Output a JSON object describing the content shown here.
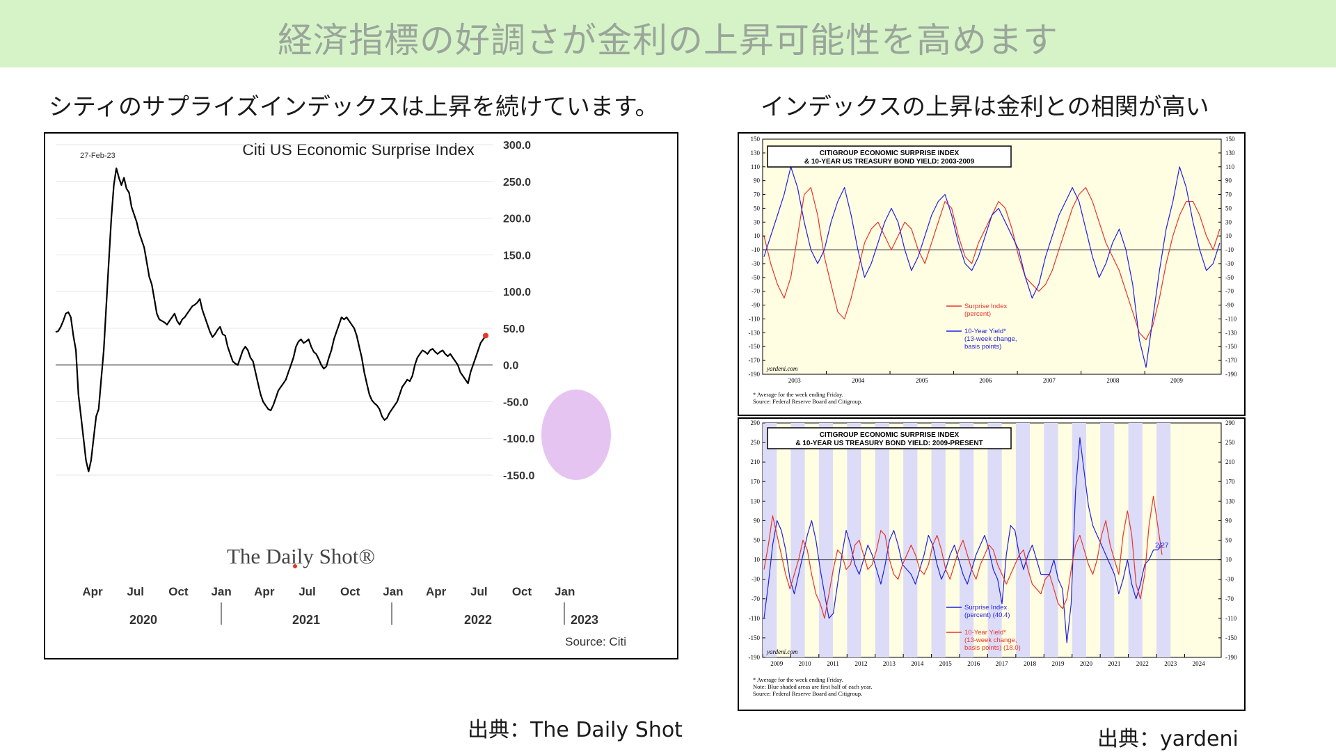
{
  "banner": {
    "title": "経済指標の好調さが金利の上昇可能性を高めます"
  },
  "left_panel": {
    "subtitle": "シティのサプライズインデックスは上昇を続けています。",
    "credit": "出典：The Daily Shot"
  },
  "right_panel": {
    "subtitle": "インデックスの上昇は金利との相関が高い",
    "credit": "出典：yardeni"
  },
  "colors": {
    "banner_bg": "#d6f3c8",
    "chart_bg": "#fffde2",
    "shade": "#dcdcf8",
    "red": "#e8342a",
    "blue": "#1f1fe6",
    "highlight": "#e6c4f2"
  },
  "chart_data": [
    {
      "type": "line",
      "title": "Citi US Economic Surprise Index",
      "date_label": "27-Feb-23",
      "source": "Source: Citi",
      "watermark": "The Daily Shot®",
      "ylim": [
        -150,
        300
      ],
      "y_ticks": [
        "300.0",
        "250.0",
        "200.0",
        "150.0",
        "100.0",
        "50.0",
        "0.0",
        "-50.0",
        "-100.0",
        "-150.0"
      ],
      "month_labels": [
        "Apr",
        "Jul",
        "Oct",
        "Jan",
        "Apr",
        "Jul",
        "Oct",
        "Jan",
        "Apr",
        "Jul",
        "Oct",
        "Jan"
      ],
      "year_labels": [
        "2020",
        "2021",
        "2022",
        "2023"
      ],
      "series": [
        {
          "values": [
            45,
            46,
            52,
            60,
            70,
            72,
            65,
            40,
            20,
            -40,
            -70,
            -100,
            -130,
            -145,
            -130,
            -100,
            -70,
            -60,
            -20,
            20,
            80,
            140,
            200,
            245,
            268,
            255,
            245,
            255,
            240,
            235,
            215,
            205,
            195,
            180,
            170,
            160,
            140,
            120,
            110,
            90,
            70,
            62,
            60,
            58,
            55,
            60,
            65,
            70,
            60,
            55,
            62,
            65,
            70,
            75,
            80,
            82,
            85,
            90,
            75,
            65,
            55,
            45,
            38,
            42,
            48,
            52,
            42,
            40,
            25,
            15,
            5,
            2,
            0,
            10,
            20,
            25,
            20,
            10,
            5,
            -10,
            -25,
            -40,
            -50,
            -55,
            -60,
            -62,
            -55,
            -45,
            -35,
            -30,
            -25,
            -20,
            -10,
            0,
            10,
            25,
            32,
            35,
            30,
            32,
            35,
            25,
            18,
            15,
            8,
            0,
            -5,
            -2,
            10,
            20,
            35,
            45,
            55,
            65,
            62,
            65,
            60,
            55,
            50,
            40,
            25,
            10,
            -10,
            -25,
            -40,
            -48,
            -52,
            -55,
            -60,
            -70,
            -75,
            -72,
            -65,
            -60,
            -55,
            -50,
            -40,
            -30,
            -25,
            -20,
            -22,
            -15,
            0,
            10,
            15,
            20,
            18,
            15,
            20,
            22,
            18,
            15,
            18,
            20,
            15,
            12,
            15,
            10,
            5,
            0,
            -10,
            -15,
            -20,
            -25,
            -10,
            0,
            10,
            20,
            30,
            35,
            40
          ]
        }
      ]
    },
    {
      "type": "line",
      "title": "CITIGROUP ECONOMIC SURPRISE INDEX & 10-YEAR US TREASURY BOND YIELD: 2003-2009",
      "title_lines": [
        "CITIGROUP ECONOMIC SURPRISE INDEX",
        "& 10-YEAR US TREASURY BOND YIELD: 2003-2009"
      ],
      "ylim": [
        -190,
        150
      ],
      "y_ticks": [
        "150",
        "130",
        "110",
        "90",
        "70",
        "50",
        "30",
        "10",
        "-10",
        "-30",
        "-50",
        "-70",
        "-90",
        "-110",
        "-130",
        "-150",
        "-170",
        "-190"
      ],
      "x_labels": [
        "2003",
        "2004",
        "2005",
        "2006",
        "2007",
        "2008",
        "2009"
      ],
      "legend": [
        {
          "name": "Surprise Index",
          "sub": "(percent)",
          "color": "#e8342a"
        },
        {
          "name": "10-Year Yield*",
          "sub": "(13-week change, basis points)",
          "color": "#1f1fe6"
        }
      ],
      "legend_lines": [
        [
          "Surprise Index",
          "(percent)"
        ],
        [
          "10-Year Yield*",
          "(13-week change,",
          "basis points)"
        ]
      ],
      "website": "yardeni.com",
      "notes": [
        "*   Average for the week ending Friday.",
        "Source: Federal Reserve Board and Citigroup."
      ],
      "series": [
        {
          "name": "Surprise Index",
          "values": [
            10,
            -30,
            -60,
            -80,
            -50,
            10,
            70,
            80,
            40,
            -20,
            -60,
            -100,
            -110,
            -80,
            -40,
            0,
            20,
            30,
            10,
            -10,
            10,
            30,
            20,
            -10,
            -30,
            0,
            30,
            60,
            50,
            10,
            -20,
            -30,
            0,
            20,
            40,
            60,
            50,
            20,
            -20,
            -50,
            -60,
            -70,
            -60,
            -40,
            -10,
            20,
            50,
            70,
            80,
            60,
            30,
            0,
            -20,
            -40,
            -70,
            -100,
            -130,
            -140,
            -120,
            -80,
            -30,
            10,
            40,
            60,
            60,
            40,
            10,
            -10,
            20
          ]
        },
        {
          "name": "10-Year Yield*",
          "values": [
            -20,
            10,
            40,
            70,
            110,
            80,
            30,
            -10,
            -30,
            -10,
            30,
            60,
            80,
            40,
            -10,
            -50,
            -30,
            0,
            30,
            50,
            30,
            -10,
            -40,
            -20,
            10,
            40,
            60,
            70,
            40,
            0,
            -30,
            -40,
            -20,
            10,
            40,
            50,
            30,
            10,
            -10,
            -50,
            -80,
            -60,
            -20,
            10,
            40,
            60,
            80,
            60,
            20,
            -20,
            -50,
            -30,
            0,
            20,
            -10,
            -60,
            -140,
            -180,
            -110,
            -40,
            20,
            60,
            110,
            80,
            30,
            -10,
            -40,
            -30,
            0
          ]
        }
      ]
    },
    {
      "type": "line",
      "title": "CITIGROUP ECONOMIC SURPRISE INDEX & 10-YEAR US TREASURY BOND YIELD: 2009-PRESENT",
      "title_lines": [
        "CITIGROUP ECONOMIC SURPRISE INDEX",
        "& 10-YEAR US TREASURY BOND YIELD: 2009-PRESENT"
      ],
      "ylim": [
        -190,
        290
      ],
      "y_ticks": [
        "290",
        "250",
        "210",
        "170",
        "130",
        "90",
        "50",
        "10",
        "-30",
        "-70",
        "-110",
        "-150",
        "-190"
      ],
      "x_labels": [
        "2009",
        "2010",
        "2011",
        "2012",
        "2013",
        "2014",
        "2015",
        "2016",
        "2017",
        "2018",
        "2019",
        "2020",
        "2021",
        "2022",
        "2023",
        "2024"
      ],
      "annotation": "2/27",
      "legend": [
        {
          "name": "Surprise Index",
          "sub": "(percent) (40.4)",
          "color": "#1f1fe6"
        },
        {
          "name": "10-Year Yield*",
          "sub": "(13-week change, basis points) (18.0)",
          "color": "#e8342a"
        }
      ],
      "legend_lines": [
        [
          "Surprise Index",
          "(percent) (40.4)"
        ],
        [
          "10-Year Yield*",
          "(13-week change,",
          "basis points) (18.0)"
        ]
      ],
      "website": "yardeni.com",
      "notes": [
        "*   Average for the week ending Friday.",
        "Note: Blue shaded areas are first half of each year.",
        "Source: Federal Reserve Board and Citigroup."
      ],
      "series": [
        {
          "name": "Surprise Index",
          "values": [
            -110,
            -40,
            40,
            90,
            70,
            30,
            -30,
            -60,
            -20,
            20,
            60,
            90,
            50,
            -10,
            -60,
            -110,
            -100,
            -40,
            20,
            70,
            40,
            0,
            -20,
            10,
            40,
            20,
            -10,
            -40,
            0,
            50,
            70,
            40,
            0,
            -10,
            -20,
            -40,
            -10,
            20,
            60,
            40,
            0,
            -30,
            -10,
            20,
            40,
            10,
            -20,
            -40,
            -10,
            20,
            40,
            60,
            30,
            -10,
            -30,
            -80,
            20,
            80,
            70,
            20,
            -10,
            20,
            40,
            10,
            -20,
            -20,
            -20,
            10,
            -30,
            -50,
            -160,
            -80,
            150,
            260,
            190,
            120,
            80,
            60,
            40,
            20,
            0,
            -20,
            -60,
            -30,
            10,
            -40,
            -70,
            -40,
            0,
            10,
            30,
            30,
            40
          ]
        },
        {
          "name": "10-Year Yield*",
          "values": [
            -10,
            40,
            100,
            60,
            20,
            -20,
            -50,
            -20,
            10,
            50,
            30,
            -20,
            -60,
            -80,
            -110,
            -60,
            -10,
            30,
            20,
            -10,
            0,
            40,
            50,
            20,
            -10,
            0,
            30,
            70,
            60,
            10,
            -20,
            -30,
            0,
            20,
            40,
            20,
            -10,
            -20,
            0,
            40,
            60,
            30,
            -10,
            -30,
            0,
            30,
            50,
            20,
            -10,
            -30,
            0,
            20,
            40,
            30,
            0,
            -20,
            -40,
            -20,
            0,
            20,
            30,
            -10,
            -40,
            -50,
            -60,
            -30,
            -20,
            -50,
            -80,
            -90,
            -70,
            -10,
            40,
            60,
            30,
            0,
            -20,
            10,
            60,
            90,
            40,
            10,
            -20,
            60,
            110,
            60,
            -40,
            -70,
            -20,
            80,
            140,
            80,
            20
          ]
        }
      ]
    }
  ]
}
